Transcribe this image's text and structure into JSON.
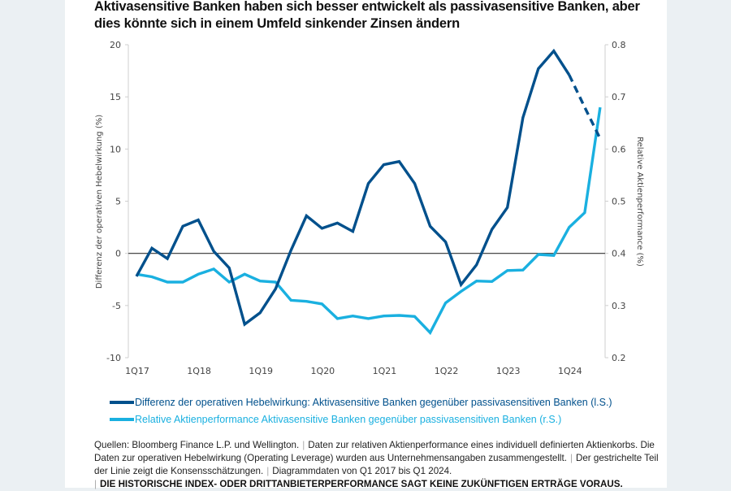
{
  "title": "Aktivasensitive Banken haben sich besser entwickelt als passivasensitive Banken, aber dies könnte sich in einem Umfeld sinkender Zinsen ändern",
  "colors": {
    "dark": "#00508c",
    "light": "#1ab0e0",
    "zero_line": "#333333",
    "background": "#ebf0f3"
  },
  "chart_data": {
    "type": "line",
    "title": "Aktivasensitive Banken haben sich besser entwickelt als passivasensitive Banken, aber dies könnte sich in einem Umfeld sinkender Zinsen ändern",
    "x": [
      "1Q17",
      "2Q17",
      "3Q17",
      "4Q17",
      "1Q18",
      "2Q18",
      "3Q18",
      "4Q18",
      "1Q19",
      "2Q19",
      "3Q19",
      "4Q19",
      "1Q20",
      "2Q20",
      "3Q20",
      "4Q20",
      "1Q21",
      "2Q21",
      "3Q21",
      "4Q21",
      "1Q22",
      "2Q22",
      "3Q22",
      "4Q22",
      "1Q23",
      "2Q23",
      "3Q23",
      "4Q23",
      "1Q24",
      "2Q24",
      "3Q24"
    ],
    "x_tick_labels": [
      "1Q17",
      "1Q18",
      "1Q19",
      "1Q20",
      "1Q21",
      "1Q22",
      "1Q23",
      "1Q24"
    ],
    "ylabel": "Differenz der operativen Hebelwirkung (%)",
    "ylim": [
      -10,
      20
    ],
    "y_ticks": [
      "20",
      "15",
      "10",
      "5",
      "0",
      "-5",
      "-10"
    ],
    "y2label": "Relative Aktienperformance (%)",
    "y2lim": [
      0.2,
      0.8
    ],
    "y2_ticks": [
      "0.8",
      "0.7",
      "0.6",
      "0.5",
      "0.4",
      "0.3",
      "0.2"
    ],
    "grid": false,
    "series": [
      {
        "name": "Differenz der operativen Hebelwirkung: Aktivasensitive Banken gegenüber passivasensitiven Banken (l.S.)",
        "axis": "left",
        "values": [
          -2.2,
          0.5,
          -0.5,
          2.6,
          3.2,
          0.2,
          -1.4,
          -6.8,
          -5.7,
          -3.4,
          0.3,
          3.6,
          2.4,
          2.9,
          2.1,
          6.7,
          8.5,
          8.8,
          6.7,
          2.6,
          1.1,
          -3.0,
          -1.1,
          2.3,
          4.4,
          13.0,
          17.7,
          19.4,
          17.1,
          14.0,
          11.0
        ],
        "dashed_from": "1Q24"
      },
      {
        "name": "Relative Aktienperformance Aktivasensitive Banken gegenüber passivasensitiven Banken (r.S.)",
        "axis": "right",
        "values": [
          0.36,
          0.355,
          0.345,
          0.345,
          0.36,
          0.37,
          0.345,
          0.36,
          0.347,
          0.345,
          0.31,
          0.308,
          0.303,
          0.275,
          0.28,
          0.275,
          0.28,
          0.281,
          0.279,
          0.248,
          0.305,
          0.327,
          0.347,
          0.346,
          0.367,
          0.368,
          0.398,
          0.396,
          0.45,
          0.478,
          0.68
        ]
      }
    ]
  },
  "legend": {
    "dark_label": "Differenz der operativen Hebelwirkung: Aktivasensitive Banken gegenüber passivasensitiven Banken (l.S.)",
    "light_label": "Relative Aktienperformance Aktivasensitive Banken gegenüber passivasensitiven Banken (r.S.)"
  },
  "notes": {
    "sources": "Quellen: Bloomberg Finance L.P. und Wellington.",
    "data_note": "Daten zur relativen Aktienperformance eines individuell definierten Aktienkorbs. Die Daten zur operativen Hebelwirkung (Operating Leverage) wurden aus Unternehmensangaben zusammengestellt.",
    "dashed_note": "Der gestrichelte Teil der Linie zeigt die Konsensschätzungen.",
    "range_note": "Diagrammdaten von Q1 2017 bis Q1 2024.",
    "separator": "|",
    "disclaimer": "DIE HISTORISCHE INDEX- ODER DRITTANBIETERPERFORMANCE SAGT KEINE ZUKÜNFTIGEN ERTRÄGE VORAUS."
  }
}
